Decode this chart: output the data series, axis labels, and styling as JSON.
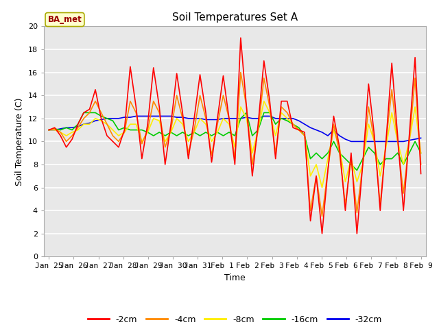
{
  "title": "Soil Temperatures Set A",
  "xlabel": "Time",
  "ylabel": "Soil Temperature (C)",
  "ylim": [
    0,
    20
  ],
  "yticks": [
    0,
    2,
    4,
    6,
    8,
    10,
    12,
    14,
    16,
    18,
    20
  ],
  "annotation": "BA_met",
  "bg_color": "#e8e8e8",
  "line_colors": {
    "-2cm": "#ff0000",
    "-4cm": "#ff8800",
    "-8cm": "#ffee00",
    "-16cm": "#00cc00",
    "-32cm": "#0000ee"
  },
  "x_labels": [
    "Jan 25",
    "Jan 26",
    "Jan 27",
    "Jan 28",
    "Jan 29",
    "Jan 30",
    "Jan 31",
    "Feb 1",
    "Feb 2",
    "Feb 3",
    "Feb 4",
    "Feb 5",
    "Feb 6",
    "Feb 7",
    "Feb 8",
    "Feb 9"
  ],
  "data_2cm": [
    11.0,
    11.2,
    10.5,
    9.5,
    10.2,
    11.5,
    12.5,
    12.8,
    14.5,
    12.0,
    10.5,
    10.0,
    9.5,
    11.0,
    16.5,
    13.0,
    8.5,
    11.5,
    16.4,
    13.0,
    8.0,
    11.5,
    15.9,
    12.5,
    8.5,
    12.0,
    15.8,
    12.5,
    8.2,
    12.0,
    15.7,
    12.0,
    8.0,
    19.0,
    13.0,
    7.0,
    11.5,
    17.0,
    13.5,
    8.5,
    13.5,
    13.5,
    11.2,
    11.0,
    10.8,
    3.1,
    7.0,
    2.0,
    7.5,
    12.2,
    9.5,
    4.0,
    9.0,
    2.0,
    8.0,
    15.0,
    10.5,
    4.0,
    10.0,
    16.8,
    10.5,
    4.0,
    10.5,
    17.3,
    7.2
  ],
  "data_4cm": [
    11.0,
    11.1,
    10.8,
    10.0,
    10.5,
    11.2,
    12.0,
    12.5,
    13.5,
    12.5,
    11.5,
    10.5,
    10.0,
    10.8,
    13.5,
    12.5,
    9.8,
    11.0,
    13.5,
    12.5,
    9.5,
    11.0,
    14.0,
    12.0,
    9.0,
    11.0,
    14.0,
    12.0,
    8.8,
    11.5,
    14.0,
    12.0,
    8.5,
    16.0,
    13.0,
    8.0,
    11.0,
    15.5,
    13.0,
    9.0,
    13.0,
    12.5,
    11.5,
    11.0,
    10.5,
    4.0,
    7.0,
    3.5,
    7.5,
    11.5,
    9.0,
    4.5,
    8.5,
    3.8,
    8.0,
    13.0,
    10.0,
    4.5,
    10.0,
    14.5,
    10.0,
    5.5,
    10.0,
    15.5,
    8.0
  ],
  "data_8cm": [
    11.0,
    11.0,
    10.8,
    10.5,
    10.8,
    11.0,
    11.5,
    11.5,
    12.0,
    11.8,
    11.5,
    11.0,
    10.5,
    10.8,
    11.5,
    11.5,
    10.0,
    10.8,
    12.0,
    11.8,
    10.0,
    10.8,
    12.0,
    11.5,
    10.0,
    10.8,
    12.0,
    11.5,
    10.0,
    10.8,
    12.0,
    11.5,
    9.5,
    13.0,
    12.0,
    9.0,
    11.0,
    13.5,
    12.5,
    10.5,
    12.5,
    12.0,
    11.5,
    11.0,
    10.5,
    7.0,
    8.0,
    6.0,
    8.5,
    11.0,
    9.5,
    6.5,
    8.5,
    6.5,
    8.0,
    11.5,
    10.0,
    7.0,
    9.5,
    12.5,
    10.0,
    8.0,
    10.0,
    13.0,
    9.0
  ],
  "data_16cm": [
    11.0,
    11.1,
    11.0,
    11.2,
    11.0,
    11.5,
    12.5,
    12.5,
    12.5,
    12.2,
    12.0,
    11.8,
    11.0,
    11.2,
    11.0,
    11.0,
    11.0,
    10.8,
    10.5,
    10.8,
    10.5,
    10.8,
    10.5,
    10.8,
    10.5,
    10.8,
    10.5,
    10.8,
    10.5,
    10.8,
    10.5,
    10.8,
    10.5,
    12.0,
    12.5,
    10.5,
    11.0,
    12.5,
    12.5,
    11.5,
    12.0,
    11.8,
    11.5,
    11.2,
    10.5,
    8.5,
    9.0,
    8.5,
    9.0,
    10.0,
    9.0,
    8.5,
    8.0,
    7.5,
    8.5,
    9.5,
    9.0,
    8.0,
    8.5,
    8.5,
    9.0,
    8.0,
    9.0,
    10.0,
    9.0
  ],
  "data_32cm": [
    11.0,
    11.0,
    11.1,
    11.2,
    11.2,
    11.3,
    11.5,
    11.6,
    11.8,
    11.9,
    12.0,
    12.0,
    12.0,
    12.1,
    12.1,
    12.2,
    12.2,
    12.2,
    12.2,
    12.2,
    12.2,
    12.2,
    12.1,
    12.1,
    12.0,
    12.0,
    12.0,
    11.9,
    11.9,
    11.9,
    12.0,
    12.0,
    12.0,
    12.0,
    12.1,
    12.0,
    12.0,
    12.2,
    12.2,
    12.0,
    12.0,
    12.0,
    12.0,
    11.8,
    11.5,
    11.2,
    11.0,
    10.8,
    10.5,
    11.0,
    10.5,
    10.2,
    10.0,
    10.0,
    10.0,
    10.0,
    10.0,
    10.0,
    10.0,
    10.0,
    10.0,
    10.0,
    10.1,
    10.2,
    10.3
  ]
}
